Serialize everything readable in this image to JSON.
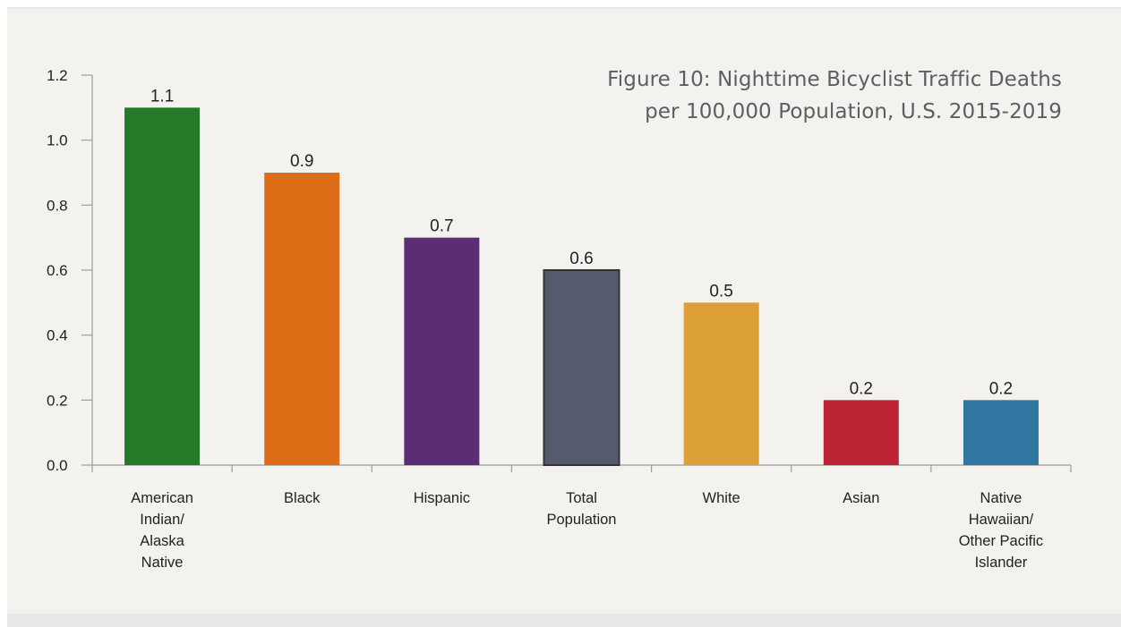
{
  "chart_data": {
    "type": "bar",
    "title_lines": [
      "Figure 10: Nighttime Bicyclist Traffic Deaths",
      "per 100,000 Population, U.S. 2015-2019"
    ],
    "categories": [
      [
        "American",
        "Indian/",
        "Alaska",
        "Native"
      ],
      [
        "Black"
      ],
      [
        "Hispanic"
      ],
      [
        "Total",
        "Population"
      ],
      [
        "White"
      ],
      [
        "Asian"
      ],
      [
        "Native",
        "Hawaiian/",
        "Other Pacific",
        "Islander"
      ]
    ],
    "values": [
      1.1,
      0.9,
      0.7,
      0.6,
      0.5,
      0.2,
      0.2
    ],
    "data_labels": [
      "1.1",
      "0.9",
      "0.7",
      "0.6",
      "0.5",
      "0.2",
      "0.2"
    ],
    "bar_colors": [
      "#247a28",
      "#dd6d16",
      "#5b2d73",
      "#555a6e",
      "#dd9f37",
      "#bd2433",
      "#2f76a1"
    ],
    "bar_outline": [
      null,
      null,
      null,
      "#333333",
      null,
      null,
      null
    ],
    "ylim": [
      0,
      1.2
    ],
    "yticks": [
      "0.0",
      "0.2",
      "0.4",
      "0.6",
      "0.8",
      "1.0",
      "1.2"
    ],
    "xlabel": "",
    "ylabel": "",
    "grid": false,
    "legend": "none"
  }
}
